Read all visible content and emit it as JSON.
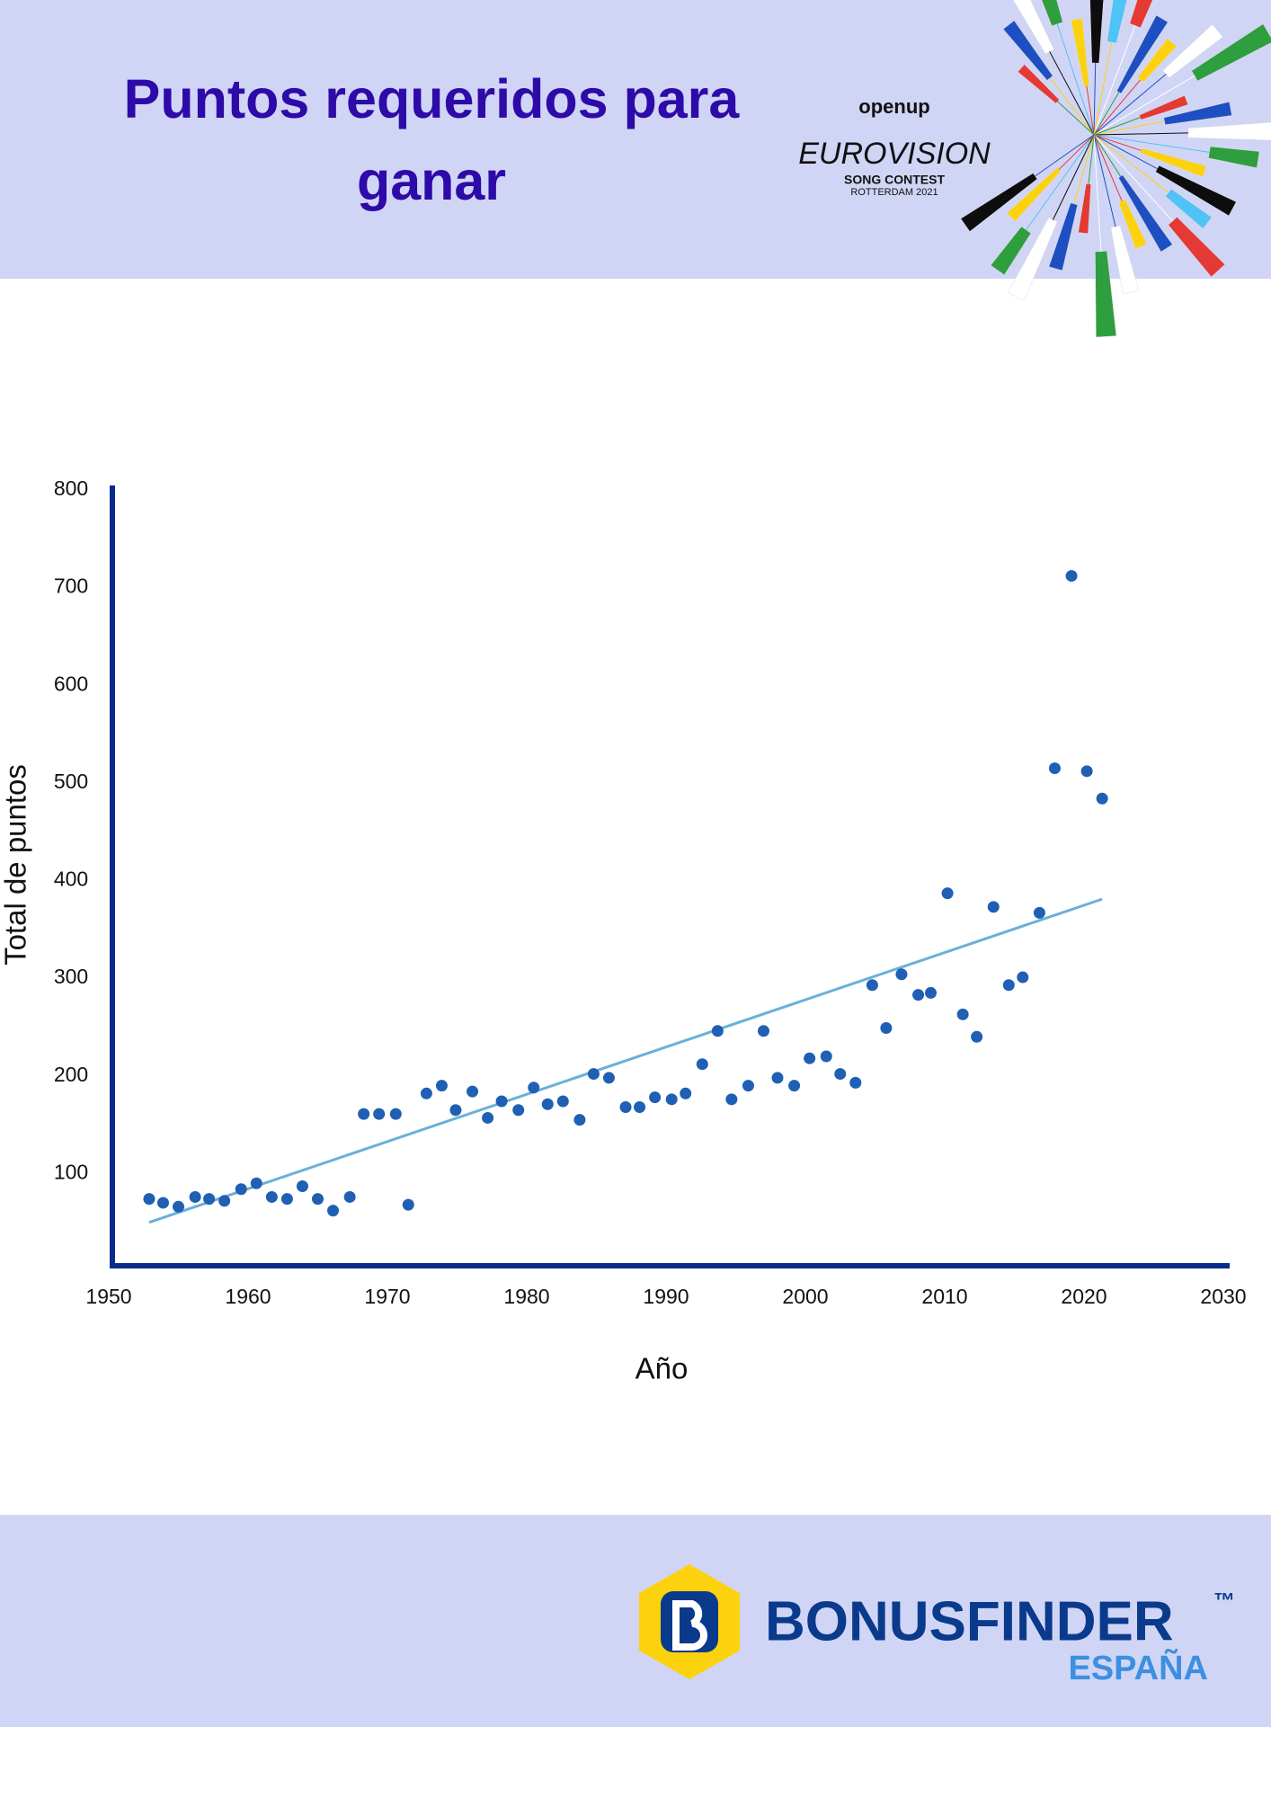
{
  "header": {
    "title_lines": [
      "Puntos requeridos para",
      "ganar"
    ],
    "logo": {
      "brand": "openup",
      "name": "EUROVISION",
      "event": "SONG CONTEST",
      "place": "ROTTERDAM 2021"
    }
  },
  "chart_data": {
    "type": "scatter",
    "x_label": "Año",
    "y_label": "Total de puntos",
    "x": [
      1952.9,
      1953.9,
      1955.0,
      1956.2,
      1957.2,
      1958.3,
      1959.5,
      1960.6,
      1961.7,
      1962.8,
      1963.9,
      1965.0,
      1966.1,
      1967.3,
      1968.3,
      1969.4,
      1970.6,
      1971.5,
      1972.8,
      1973.9,
      1974.9,
      1976.1,
      1977.2,
      1978.2,
      1979.4,
      1980.5,
      1981.5,
      1982.6,
      1983.8,
      1984.8,
      1985.9,
      1987.1,
      1988.1,
      1989.2,
      1990.4,
      1991.4,
      1992.6,
      1993.7,
      1994.7,
      1995.9,
      1997.0,
      1998.0,
      1999.2,
      2000.3,
      2001.5,
      2002.5,
      2003.6,
      2004.8,
      2005.8,
      2006.9,
      2008.1,
      2009.0,
      2010.2,
      2011.3,
      2012.3,
      2013.5,
      2014.6,
      2015.6,
      2016.8,
      2017.9,
      2019.1,
      2020.2,
      2021.3
    ],
    "values": [
      74,
      70,
      66,
      76,
      74,
      72,
      84,
      90,
      76,
      74,
      87,
      74,
      62,
      76,
      161,
      161,
      161,
      68,
      182,
      190,
      165,
      184,
      157,
      174,
      165,
      188,
      171,
      174,
      155,
      202,
      198,
      168,
      168,
      178,
      176,
      182,
      212,
      246,
      176,
      190,
      246,
      198,
      190,
      218,
      220,
      202,
      193,
      293,
      249,
      304,
      283,
      285,
      387,
      263,
      240,
      373,
      293,
      301,
      367,
      515,
      712,
      512,
      484
    ],
    "color": "#1f5fb4",
    "trendline": {
      "x": [
        1952.9,
        2021.3
      ],
      "values": [
        50,
        381
      ],
      "color": "#6ab0d8"
    },
    "xlim": [
      1950,
      2030
    ],
    "xticks": [
      1950,
      1960,
      1970,
      1980,
      1990,
      2000,
      2010,
      2020,
      2030
    ],
    "ylim": [
      0,
      800
    ],
    "yticks": [
      100,
      200,
      300,
      400,
      500,
      600,
      700,
      800
    ],
    "axis_color": "#0a2a8c"
  },
  "footer": {
    "brand": "BONUSFINDER",
    "trademark": "™",
    "region": "ESPAÑA"
  }
}
